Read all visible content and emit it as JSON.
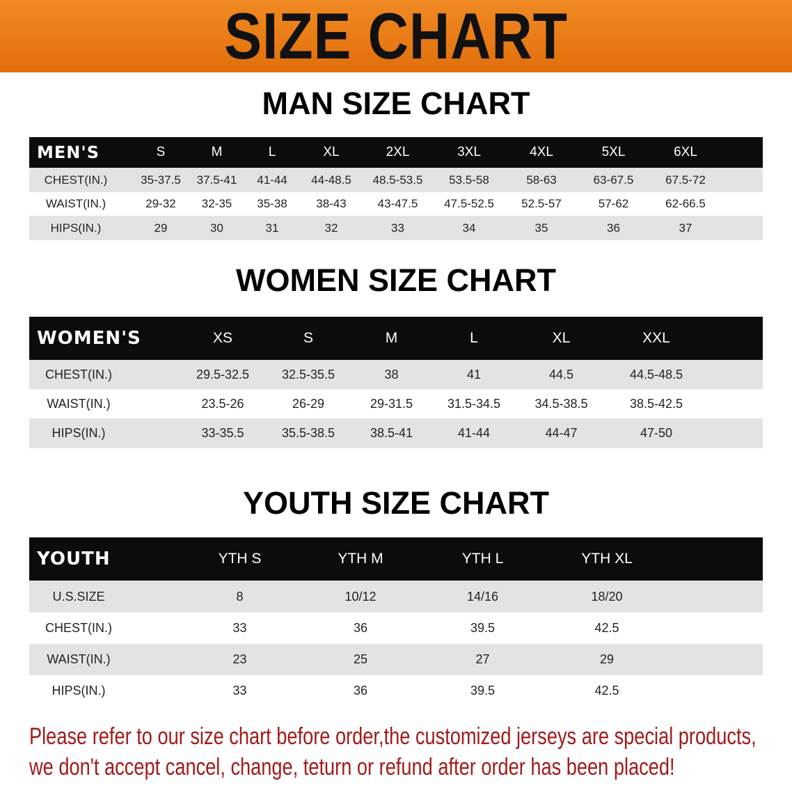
{
  "banner": {
    "title": "SIZE CHART",
    "color": "#e97d17"
  },
  "men": {
    "section_title": "MAN SIZE CHART",
    "header": [
      "MEN'S",
      "S",
      "M",
      "L",
      "XL",
      "2XL",
      "3XL",
      "4XL",
      "5XL",
      "6XL"
    ],
    "rows": [
      [
        "CHEST(IN.)",
        "35-37.5",
        "37.5-41",
        "41-44",
        "44-48.5",
        "48.5-53.5",
        "53.5-58",
        "58-63",
        "63-67.5",
        "67.5-72"
      ],
      [
        "WAIST(IN.)",
        "29-32",
        "32-35",
        "35-38",
        "38-43",
        "43-47.5",
        "47.5-52.5",
        "52.5-57",
        "57-62",
        "62-66.5"
      ],
      [
        "HIPS(IN.)",
        "29",
        "30",
        "31",
        "32",
        "33",
        "34",
        "35",
        "36",
        "37"
      ]
    ]
  },
  "women": {
    "section_title": "WOMEN SIZE CHART",
    "header": [
      "WOMEN'S",
      "XS",
      "S",
      "M",
      "L",
      "XL",
      "XXL"
    ],
    "rows": [
      [
        "CHEST(IN.)",
        "29.5-32.5",
        "32.5-35.5",
        "38",
        "41",
        "44.5",
        "44.5-48.5"
      ],
      [
        "WAIST(IN.)",
        "23.5-26",
        "26-29",
        "29-31.5",
        "31.5-34.5",
        "34.5-38.5",
        "38.5-42.5"
      ],
      [
        "HIPS(IN.)",
        "33-35.5",
        "35.5-38.5",
        "38.5-41",
        "41-44",
        "44-47",
        "47-50"
      ]
    ]
  },
  "youth": {
    "section_title": "YOUTH SIZE CHART",
    "header": [
      "YOUTH",
      "YTH S",
      "YTH M",
      "YTH L",
      "YTH XL"
    ],
    "rows": [
      [
        "U.S.SIZE",
        "8",
        "10/12",
        "14/16",
        "18/20"
      ],
      [
        "CHEST(IN.)",
        "33",
        "36",
        "39.5",
        "42.5"
      ],
      [
        "WAIST(IN.)",
        "23",
        "25",
        "27",
        "29"
      ],
      [
        "HIPS(IN.)",
        "33",
        "36",
        "39.5",
        "42.5"
      ]
    ]
  },
  "note": {
    "line1": "Please refer to our size chart before order,the customized jerseys are special products,",
    "line2": "we don't accept cancel, change, teturn or refund after order has been placed!",
    "color": "#a31a1a"
  }
}
